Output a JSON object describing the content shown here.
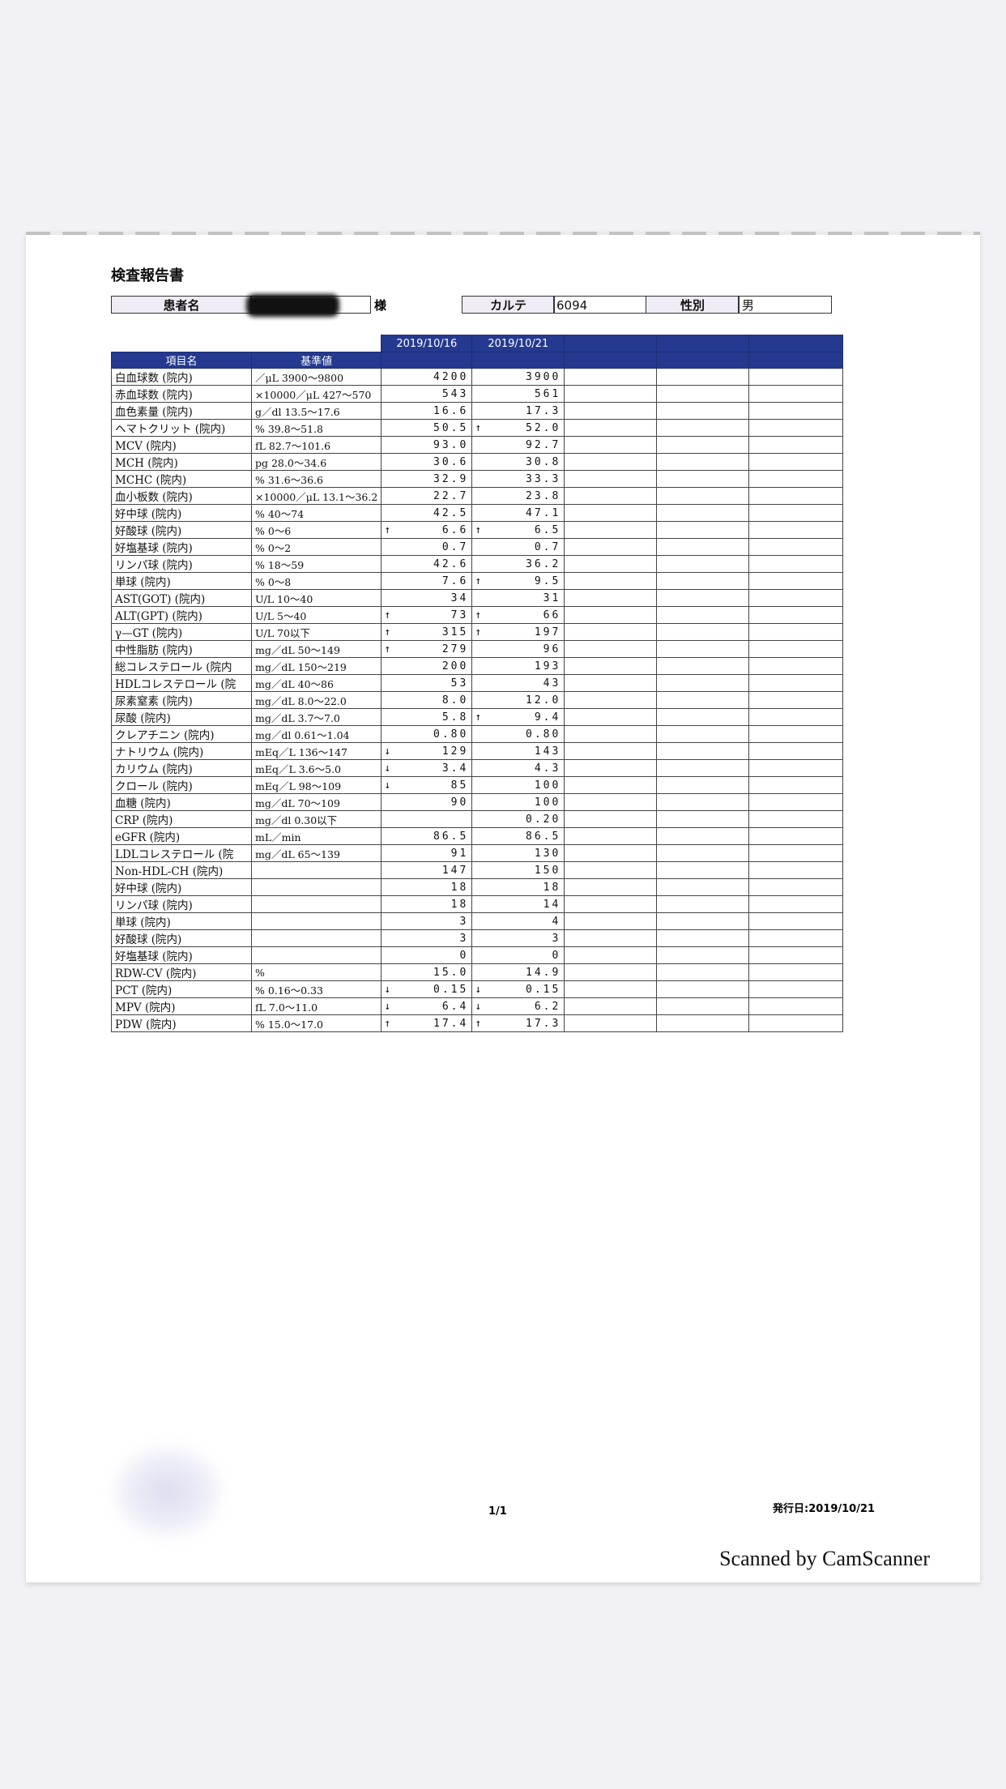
{
  "document": {
    "title": "検査報告書",
    "patient_label": "患者名",
    "honorific": "様",
    "chart_label": "カルテ",
    "chart_number": "6094",
    "sex_label": "性別",
    "sex_value": "男",
    "header_color": "#24398f"
  },
  "table": {
    "col_item": "項目名",
    "col_ref": "基準値",
    "dates": [
      "2019/10/16",
      "2019/10/21"
    ],
    "rows": [
      {
        "name": "白血球数 (院内)",
        "ref": "／μL 3900～9800",
        "v1": "4200",
        "f1": "",
        "v2": "3900",
        "f2": ""
      },
      {
        "name": "赤血球数 (院内)",
        "ref": "×10000／μL 427～570",
        "v1": "543",
        "f1": "",
        "v2": "561",
        "f2": ""
      },
      {
        "name": "血色素量 (院内)",
        "ref": "g／dl 13.5～17.6",
        "v1": "16.6",
        "f1": "",
        "v2": "17.3",
        "f2": ""
      },
      {
        "name": "ヘマトクリット (院内)",
        "ref": "%  39.8～51.8",
        "v1": "50.5",
        "f1": "",
        "v2": "52.0",
        "f2": "↑"
      },
      {
        "name": "MCV (院内)",
        "ref": "fL 82.7～101.6",
        "v1": "93.0",
        "f1": "",
        "v2": "92.7",
        "f2": ""
      },
      {
        "name": "MCH (院内)",
        "ref": "pg  28.0～34.6",
        "v1": "30.6",
        "f1": "",
        "v2": "30.8",
        "f2": ""
      },
      {
        "name": "MCHC (院内)",
        "ref": "%  31.6～36.6",
        "v1": "32.9",
        "f1": "",
        "v2": "33.3",
        "f2": ""
      },
      {
        "name": "血小板数 (院内)",
        "ref": "×10000／μL 13.1～36.2",
        "v1": "22.7",
        "f1": "",
        "v2": "23.8",
        "f2": ""
      },
      {
        "name": " 好中球 (院内)",
        "ref": "%      40～74",
        "v1": "42.5",
        "f1": "",
        "v2": "47.1",
        "f2": ""
      },
      {
        "name": " 好酸球 (院内)",
        "ref": "%       0～6",
        "v1": "6.6",
        "f1": "↑",
        "v2": "6.5",
        "f2": "↑"
      },
      {
        "name": " 好塩基球 (院内)",
        "ref": "%       0～2",
        "v1": "0.7",
        "f1": "",
        "v2": "0.7",
        "f2": ""
      },
      {
        "name": " リンパ球 (院内)",
        "ref": "%      18～59",
        "v1": "42.6",
        "f1": "",
        "v2": "36.2",
        "f2": ""
      },
      {
        "name": " 単球 (院内)",
        "ref": "%       0～8",
        "v1": "7.6",
        "f1": "",
        "v2": "9.5",
        "f2": "↑"
      },
      {
        "name": "AST(GOT) (院内)",
        "ref": "U/L    10～40",
        "v1": "34",
        "f1": "",
        "v2": "31",
        "f2": ""
      },
      {
        "name": "ALT(GPT) (院内)",
        "ref": "U/L     5～40",
        "v1": "73",
        "f1": "↑",
        "v2": "66",
        "f2": "↑"
      },
      {
        "name": "γ—GT (院内)",
        "ref": "U/L     70以下",
        "v1": "315",
        "f1": "↑",
        "v2": "197",
        "f2": "↑"
      },
      {
        "name": "中性脂肪 (院内)",
        "ref": "mg／dL  50～149",
        "v1": "279",
        "f1": "↑",
        "v2": "96",
        "f2": ""
      },
      {
        "name": "総コレステロール (院内",
        "ref": "mg／dL 150～219",
        "v1": "200",
        "f1": "",
        "v2": "193",
        "f2": ""
      },
      {
        "name": "HDLコレステロール (院",
        "ref": "mg／dL  40～86",
        "v1": "53",
        "f1": "",
        "v2": "43",
        "f2": ""
      },
      {
        "name": "尿素窒素 (院内)",
        "ref": "mg／dL 8.0～22.0",
        "v1": "8.0",
        "f1": "",
        "v2": "12.0",
        "f2": ""
      },
      {
        "name": "尿酸 (院内)",
        "ref": "mg／dL 3.7～7.0",
        "v1": "5.8",
        "f1": "",
        "v2": "9.4",
        "f2": "↑"
      },
      {
        "name": "クレアチニン (院内)",
        "ref": "mg／dl  0.61～1.04",
        "v1": "0.80",
        "f1": "",
        "v2": "0.80",
        "f2": ""
      },
      {
        "name": "ナトリウム (院内)",
        "ref": "mEq／L 136～147",
        "v1": "129",
        "f1": "↓",
        "v2": "143",
        "f2": ""
      },
      {
        "name": "カリウム (院内)",
        "ref": "mEq／L 3.6～5.0",
        "v1": "3.4",
        "f1": "↓",
        "v2": "4.3",
        "f2": ""
      },
      {
        "name": "クロール (院内)",
        "ref": "mEq／L  98～109",
        "v1": "85",
        "f1": "↓",
        "v2": "100",
        "f2": ""
      },
      {
        "name": "血糖 (院内)",
        "ref": "mg／dL  70～109",
        "v1": "90",
        "f1": "",
        "v2": "100",
        "f2": ""
      },
      {
        "name": "CRP (院内)",
        "ref": "mg／dl  0.30以下",
        "v1": "",
        "f1": "",
        "v2": "0.20",
        "f2": ""
      },
      {
        "name": "eGFR (院内)",
        "ref": "mL／min",
        "v1": "86.5",
        "f1": "",
        "v2": "86.5",
        "f2": ""
      },
      {
        "name": "LDLコレステロール (院",
        "ref": "mg／dL  65～139",
        "v1": "91",
        "f1": "",
        "v2": "130",
        "f2": ""
      },
      {
        "name": "Non-HDL-CH (院内)",
        "ref": "",
        "v1": "147",
        "f1": "",
        "v2": "150",
        "f2": ""
      },
      {
        "name": " 好中球 (院内)",
        "ref": "",
        "v1": "18",
        "f1": "",
        "v2": "18",
        "f2": ""
      },
      {
        "name": " リンパ球 (院内)",
        "ref": "",
        "v1": "18",
        "f1": "",
        "v2": "14",
        "f2": ""
      },
      {
        "name": " 単球 (院内)",
        "ref": "",
        "v1": "3",
        "f1": "",
        "v2": "4",
        "f2": ""
      },
      {
        "name": " 好酸球 (院内)",
        "ref": "",
        "v1": "3",
        "f1": "",
        "v2": "3",
        "f2": ""
      },
      {
        "name": " 好塩基球 (院内)",
        "ref": "",
        "v1": "0",
        "f1": "",
        "v2": "0",
        "f2": ""
      },
      {
        "name": "RDW-CV (院内)",
        "ref": "%",
        "v1": "15.0",
        "f1": "",
        "v2": "14.9",
        "f2": ""
      },
      {
        "name": "PCT (院内)",
        "ref": "%  0.16～0.33",
        "v1": "0.15",
        "f1": "↓",
        "v2": "0.15",
        "f2": "↓"
      },
      {
        "name": "MPV (院内)",
        "ref": "fL  7.0～11.0",
        "v1": "6.4",
        "f1": "↓",
        "v2": "6.2",
        "f2": "↓"
      },
      {
        "name": "PDW (院内)",
        "ref": "%  15.0～17.0",
        "v1": "17.4",
        "f1": "↑",
        "v2": "17.3",
        "f2": "↑"
      }
    ]
  },
  "footer": {
    "page": "1/1",
    "issued": "発行日:2019/10/21",
    "watermark": "Scanned by CamScanner"
  }
}
